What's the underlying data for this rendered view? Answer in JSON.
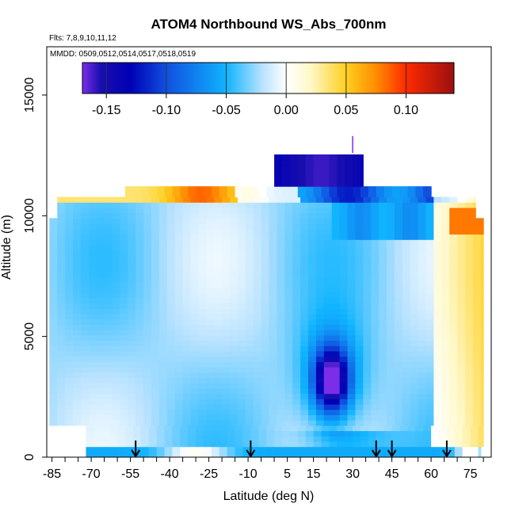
{
  "chart_data": {
    "type": "heatmap",
    "title": "ATOM4 Northbound WS_Abs_700nm",
    "subtitle_flights": "Flts: 7,8,9,10,11,12",
    "subtitle_dates": "MMDD: 0509,0512,0514,0517,0518,0519",
    "xlabel": "Latitude (deg N)",
    "ylabel": "Altitude (m)",
    "xlim": [
      -87,
      83
    ],
    "ylim": [
      0,
      17000
    ],
    "x_ticks": [
      -85,
      -70,
      -55,
      -40,
      -25,
      -10,
      5,
      15,
      30,
      45,
      60,
      75
    ],
    "x_tick_labels": [
      "-85",
      "-70",
      "-55",
      "-40",
      "-25",
      "-10",
      "5",
      "15",
      "30",
      "45",
      "60",
      "75"
    ],
    "y_ticks": [
      0,
      5000,
      10000,
      15000
    ],
    "y_tick_labels": [
      "0",
      "5000",
      "10000",
      "15000"
    ],
    "colorbar": {
      "range": [
        -0.17,
        0.14
      ],
      "ticks": [
        -0.15,
        -0.1,
        -0.05,
        0.0,
        0.05,
        0.1
      ],
      "tick_labels": [
        "-0.15",
        "-0.10",
        "-0.05",
        "0.00",
        "0.05",
        "0.10"
      ],
      "stops": [
        {
          "v": -0.17,
          "color": "#7b2ee8"
        },
        {
          "v": -0.155,
          "color": "#1a0fb0"
        },
        {
          "v": -0.13,
          "color": "#0000b4"
        },
        {
          "v": -0.1,
          "color": "#1050e0"
        },
        {
          "v": -0.05,
          "color": "#10b4ff"
        },
        {
          "v": -0.02,
          "color": "#b8e2ff"
        },
        {
          "v": 0.0,
          "color": "#ffffff"
        },
        {
          "v": 0.02,
          "color": "#fff8c8"
        },
        {
          "v": 0.05,
          "color": "#ffcf20"
        },
        {
          "v": 0.075,
          "color": "#ff8c00"
        },
        {
          "v": 0.1,
          "color": "#ff2a00"
        },
        {
          "v": 0.14,
          "color": "#9a1010"
        }
      ]
    },
    "profile_markers_lat": [
      -53,
      -9,
      39,
      45,
      66
    ],
    "grid": false,
    "legend": "colorbar top"
  }
}
